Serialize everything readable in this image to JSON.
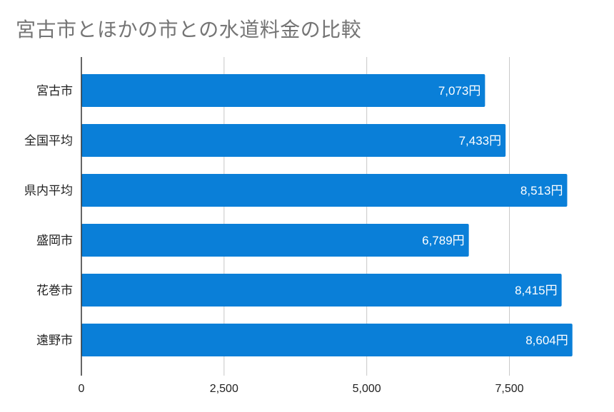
{
  "chart_data": {
    "type": "bar",
    "orientation": "horizontal",
    "title": "宮古市とほかの市との水道料金の比較",
    "categories": [
      "宮古市",
      "全国平均",
      "県内平均",
      "盛岡市",
      "花巻市",
      "遠野市"
    ],
    "values": [
      7073,
      7433,
      8513,
      6789,
      8415,
      8604
    ],
    "data_labels": [
      "7,073円",
      "7,433円",
      "8,513円",
      "6,789円",
      "8,415円",
      "8,604円"
    ],
    "xlim": [
      0,
      9000
    ],
    "x_ticks": [
      0,
      2500,
      5000,
      7500
    ],
    "x_tick_labels": [
      "0",
      "2,500",
      "5,000",
      "7,500"
    ],
    "xlabel": "",
    "ylabel": "",
    "grid": "vertical",
    "legend": "none",
    "bar_color": "#0a7fd8",
    "grid_color": "#c8c8c8",
    "axis_color": "#333333",
    "title_color": "#757575"
  }
}
